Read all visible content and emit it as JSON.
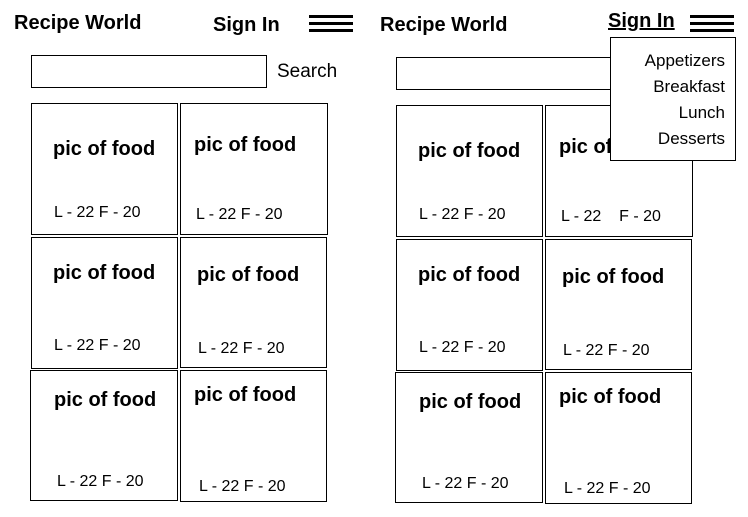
{
  "left": {
    "title": "Recipe World",
    "sign_in": "Sign In",
    "search_label": "Search",
    "cards": [
      {
        "caption": "pic of food",
        "stats": "L - 22 F - 20"
      },
      {
        "caption": "pic of food",
        "stats": "L - 22 F - 20"
      },
      {
        "caption": "pic of food",
        "stats": "L - 22 F - 20"
      },
      {
        "caption": "pic of food",
        "stats": "L - 22 F - 20"
      },
      {
        "caption": "pic of food",
        "stats": "L - 22 F - 20"
      },
      {
        "caption": "pic of food",
        "stats": "L - 22 F - 20"
      }
    ]
  },
  "right": {
    "title": "Recipe World",
    "sign_in": "Sign In",
    "menu": [
      "Appetizers",
      "Breakfast",
      "Lunch",
      "Desserts"
    ],
    "cards": [
      {
        "caption": "pic of food",
        "stats": "L - 22 F - 20"
      },
      {
        "caption": "pic of food",
        "stats": "L - 22    F - 20"
      },
      {
        "caption": "pic of food",
        "stats": "L - 22 F - 20"
      },
      {
        "caption": "pic of food",
        "stats": "L - 22 F - 20"
      },
      {
        "caption": "pic of food",
        "stats": "L - 22 F - 20"
      },
      {
        "caption": "pic of food",
        "stats": "L - 22 F - 20"
      }
    ]
  }
}
